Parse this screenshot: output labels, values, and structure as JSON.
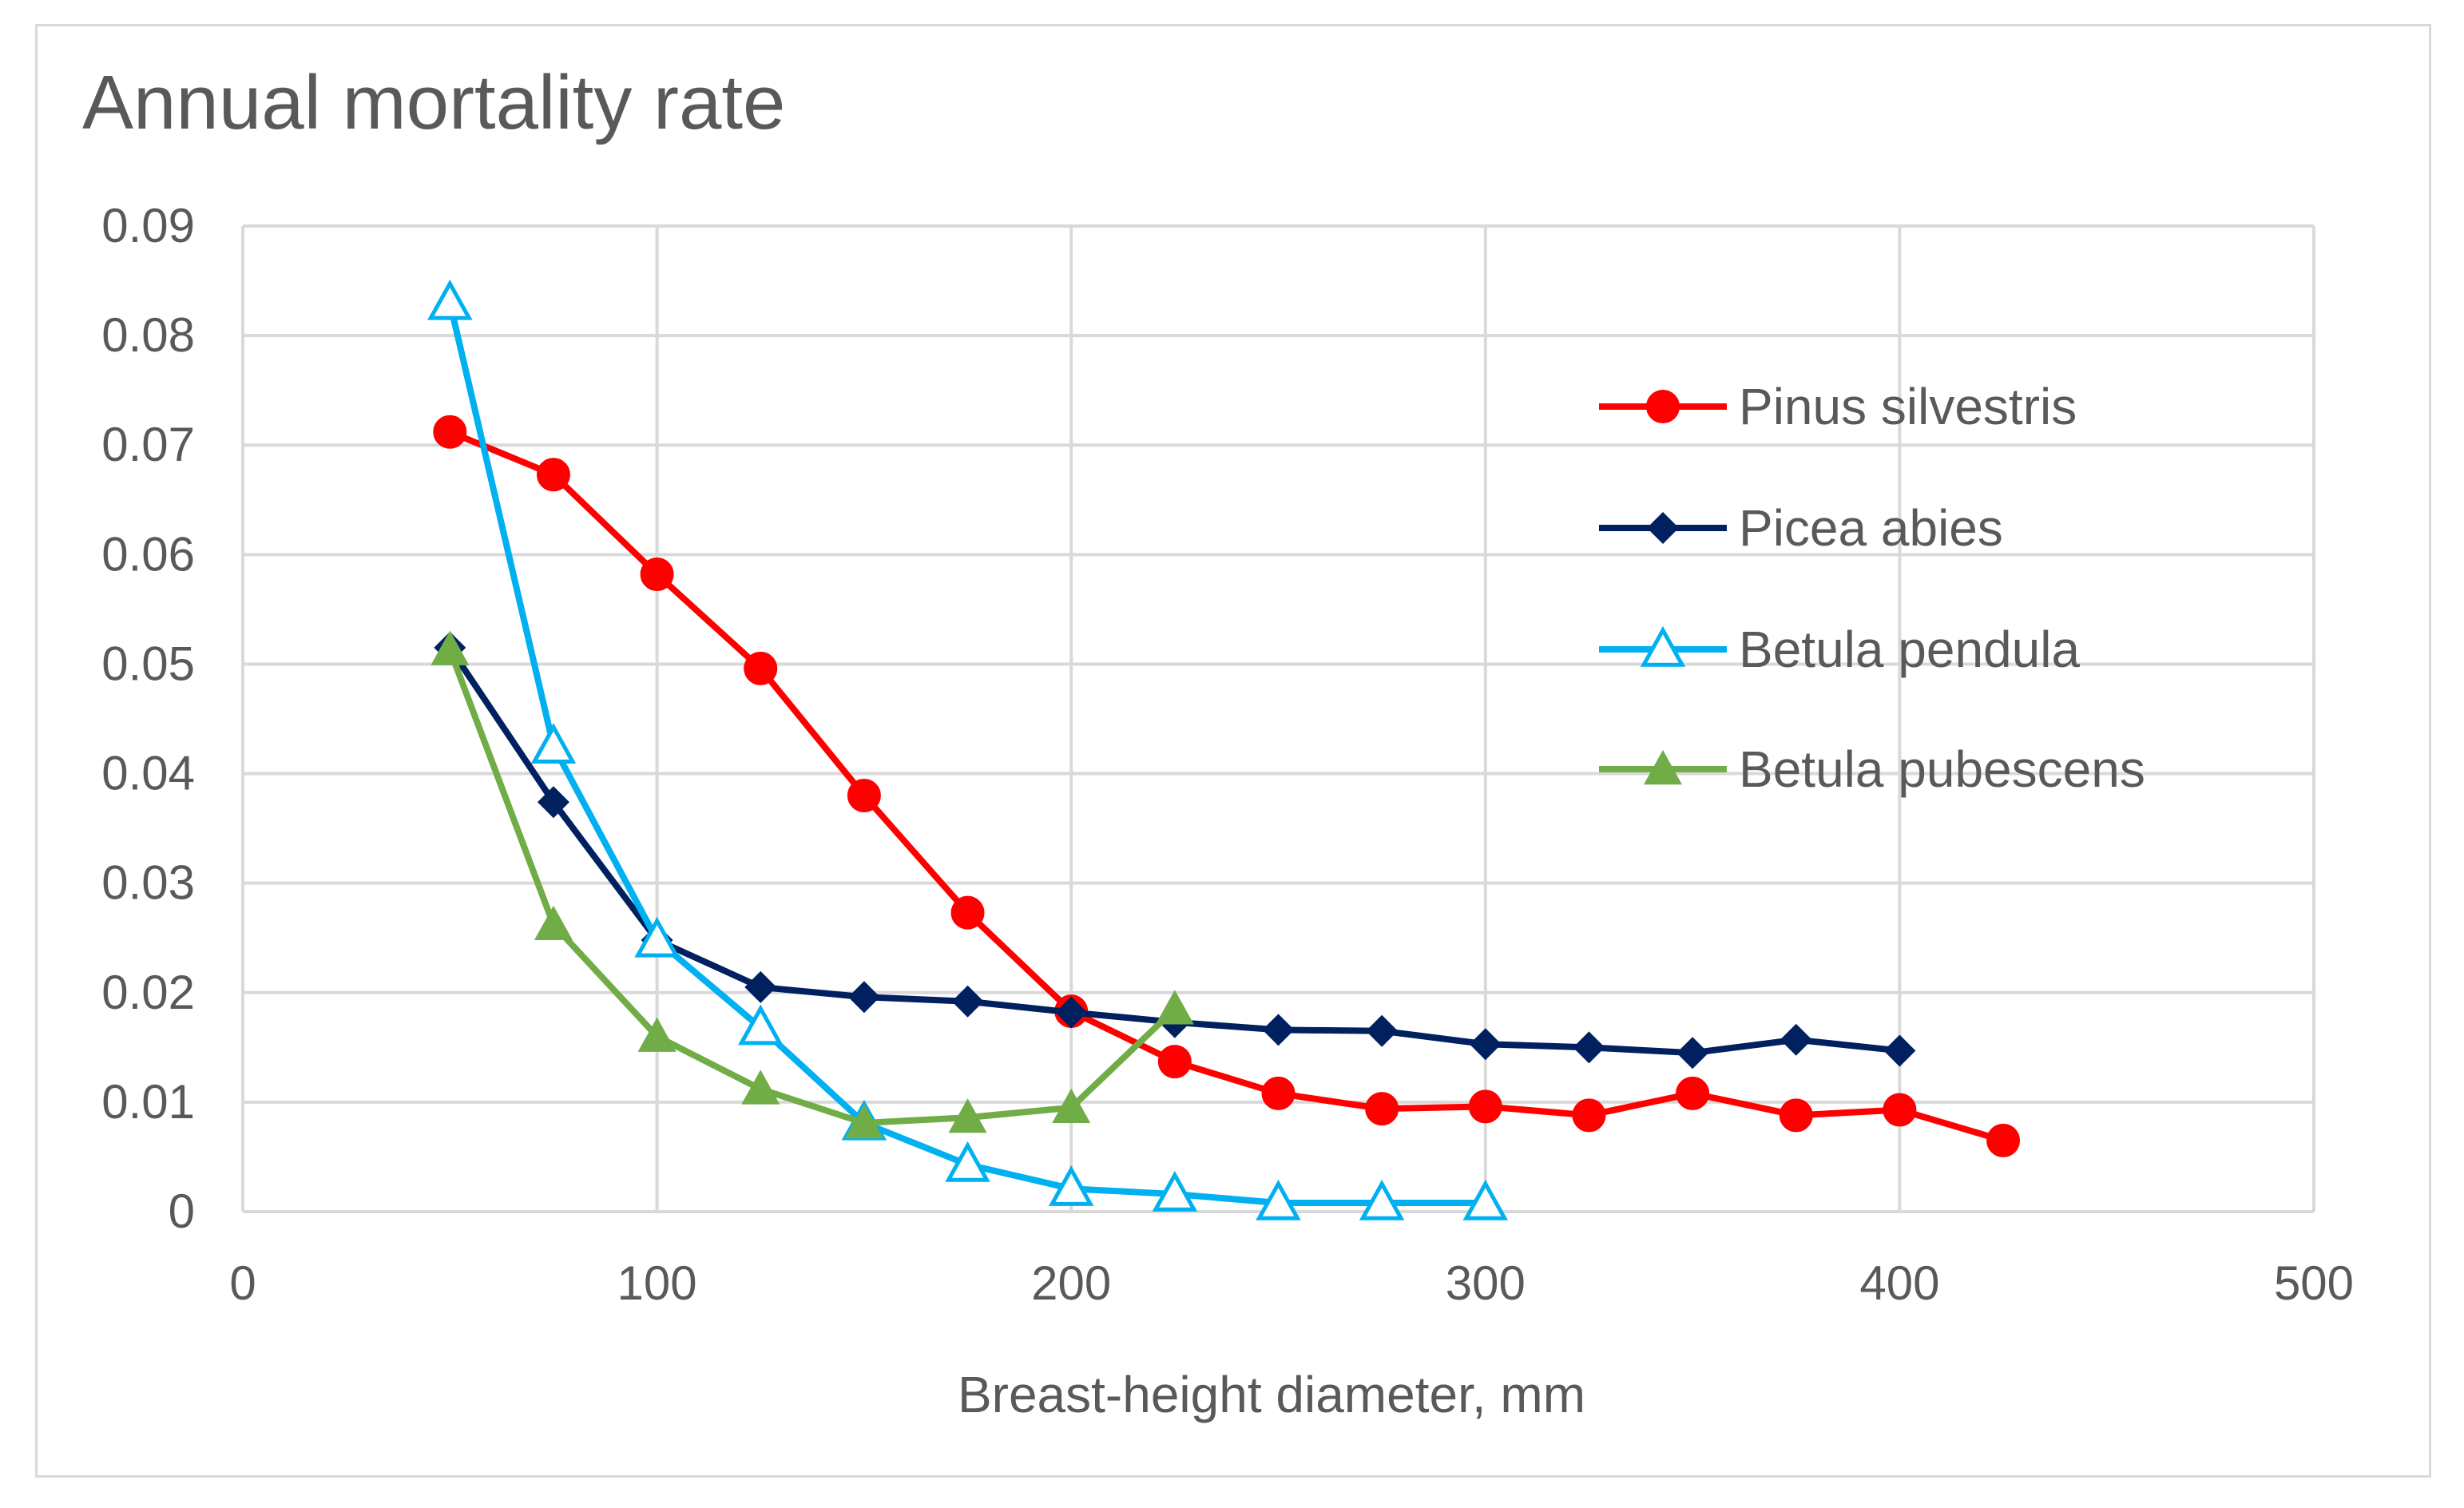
{
  "chart_data": {
    "type": "line",
    "title": "Annual mortality rate",
    "xlabel": "Breast-height diameter, mm",
    "ylabel": "",
    "xlim": [
      0,
      500
    ],
    "ylim": [
      0,
      0.09
    ],
    "x_ticks": [
      0,
      100,
      200,
      300,
      400,
      500
    ],
    "x_tick_labels": [
      "0",
      "100",
      "200",
      "300",
      "400",
      "500"
    ],
    "y_ticks": [
      0,
      0.01,
      0.02,
      0.03,
      0.04,
      0.05,
      0.06,
      0.07,
      0.08,
      0.09
    ],
    "y_tick_labels": [
      "0",
      "0.01",
      "0.02",
      "0.03",
      "0.04",
      "0.05",
      "0.06",
      "0.07",
      "0.08",
      "0.09"
    ],
    "grid": true,
    "legend_position": "right",
    "series": [
      {
        "name": "Pinus silvestris",
        "color": "#ff0000",
        "marker": "circle",
        "x": [
          50,
          75,
          100,
          125,
          150,
          175,
          200,
          225,
          250,
          275,
          300,
          325,
          350,
          375,
          400,
          425
        ],
        "values": [
          0.0712,
          0.0673,
          0.0582,
          0.0496,
          0.038,
          0.0273,
          0.0183,
          0.0137,
          0.0108,
          0.0094,
          0.0096,
          0.0088,
          0.0108,
          0.0088,
          0.0093,
          0.0065
        ]
      },
      {
        "name": "Picea abies",
        "color": "#002060",
        "marker": "diamond",
        "x": [
          50,
          75,
          100,
          125,
          150,
          175,
          200,
          225,
          250,
          275,
          300,
          325,
          350,
          375,
          400
        ],
        "values": [
          0.0515,
          0.0374,
          0.0248,
          0.0205,
          0.0196,
          0.0192,
          0.0182,
          0.0173,
          0.0166,
          0.0165,
          0.0153,
          0.015,
          0.0145,
          0.0157,
          0.0147
        ]
      },
      {
        "name": "Betula pendula",
        "color": "#00b0f0",
        "marker": "triangle-open",
        "x": [
          50,
          75,
          100,
          125,
          150,
          175,
          200,
          225,
          250,
          275,
          300
        ],
        "values": [
          0.083,
          0.0425,
          0.0248,
          0.0168,
          0.0081,
          0.0043,
          0.0021,
          0.0016,
          0.0008,
          0.0008,
          0.0008
        ]
      },
      {
        "name": "Betula pubescens",
        "color": "#70ad47",
        "marker": "triangle",
        "x": [
          50,
          75,
          100,
          125,
          150,
          175,
          200,
          225
        ],
        "values": [
          0.0513,
          0.0262,
          0.016,
          0.0112,
          0.0081,
          0.0086,
          0.0095,
          0.0185
        ]
      }
    ]
  }
}
